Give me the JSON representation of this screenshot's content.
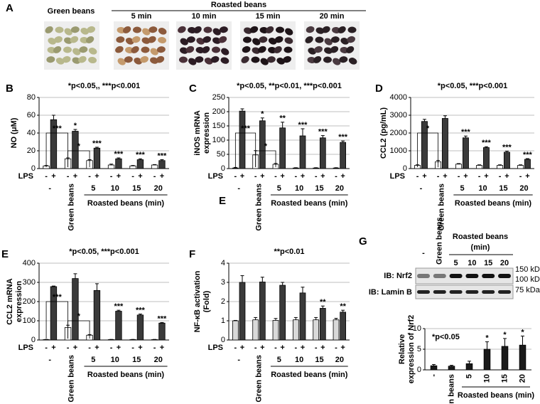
{
  "panel_a": {
    "panel": "A",
    "green_label": "Green beans",
    "roasted_label": "Roasted beans",
    "times": [
      "5 min",
      "10 min",
      "15 min",
      "20 min"
    ]
  },
  "panel_g_blot": {
    "panel": "G",
    "lanes": [
      "-",
      "Green beans",
      "5",
      "10",
      "15",
      "20"
    ],
    "group_label": "Roasted beans",
    "group_unit": "(min)",
    "rows": [
      "IB: Nrf2",
      "IB: Lamin B"
    ],
    "markers": [
      "150 kDa",
      "100 kDa",
      "75 kDa"
    ]
  },
  "chart_data": [
    {
      "type": "bar",
      "panel": "B",
      "title": "*p<0.05,, ***p<0.001",
      "y_label": [
        "NO (μM)"
      ],
      "ylim": [
        0,
        80
      ],
      "yticks": [
        0,
        20,
        40,
        60,
        80
      ],
      "grid": true,
      "x_label": "LPS",
      "lps_signs": [
        "-",
        "+"
      ],
      "categories": [
        "-",
        "Green beans",
        "5",
        "10",
        "15",
        "20"
      ],
      "group_label": "Roasted beans (min)",
      "brackets": [
        "***",
        "*"
      ],
      "series": [
        {
          "color": "#ffffff",
          "values": [
            3,
            11,
            9,
            4,
            3,
            4
          ],
          "errors": [
            0.5,
            1,
            1,
            1,
            0.5,
            0.5
          ]
        },
        {
          "color": "#3a3a3a",
          "values": [
            55,
            42,
            23,
            11,
            10,
            9
          ],
          "errors": [
            5,
            2,
            1,
            1,
            1,
            1
          ],
          "stars": [
            null,
            "*",
            "***",
            "***",
            "***",
            "***"
          ]
        }
      ]
    },
    {
      "type": "bar",
      "panel": "C",
      "title": "*p<0.05, **p<0.01, ***p<0.001",
      "y_label": [
        "iNOS mRNA",
        "expression"
      ],
      "ylim": [
        0,
        250
      ],
      "yticks": [
        0,
        50,
        100,
        150,
        200,
        250
      ],
      "grid": true,
      "x_label": "LPS",
      "lps_signs": [
        "-",
        "+"
      ],
      "categories": [
        "-",
        "Green beans",
        "5",
        "10",
        "15",
        "20"
      ],
      "group_label": "Roasted beans (min)",
      "brackets": [
        "***",
        "*"
      ],
      "extra_label": "E",
      "series": [
        {
          "color": "#ffffff",
          "values": [
            2,
            48,
            15,
            2,
            2,
            2
          ],
          "errors": [
            2,
            15,
            3,
            1,
            1,
            1
          ]
        },
        {
          "color": "#3a3a3a",
          "values": [
            202,
            168,
            143,
            115,
            108,
            92
          ],
          "errors": [
            8,
            10,
            20,
            25,
            8,
            5
          ],
          "stars": [
            null,
            "*",
            "**",
            "***",
            "***",
            "***"
          ]
        }
      ]
    },
    {
      "type": "bar",
      "panel": "D",
      "title": "*p<0.05, ***p<0.001",
      "y_label": [
        "CCL2 (pg/mL)"
      ],
      "ylim": [
        0,
        4000
      ],
      "yticks": [
        0,
        1000,
        2000,
        3000,
        4000
      ],
      "grid": true,
      "x_label": "LPS",
      "lps_signs": [
        "-",
        "+"
      ],
      "categories": [
        "-",
        "Green beans",
        "5",
        "10",
        "15",
        "20"
      ],
      "group_label": "Roasted beans (min)",
      "brackets": [
        "*"
      ],
      "series": [
        {
          "color": "#ffffff",
          "values": [
            180,
            380,
            250,
            180,
            180,
            180
          ],
          "errors": [
            30,
            80,
            30,
            30,
            30,
            30
          ]
        },
        {
          "color": "#3a3a3a",
          "values": [
            2650,
            2820,
            1730,
            1180,
            920,
            520
          ],
          "errors": [
            120,
            150,
            100,
            50,
            60,
            40
          ],
          "stars": [
            null,
            null,
            "***",
            "***",
            "***",
            "***"
          ]
        }
      ]
    },
    {
      "type": "bar",
      "panel": "E",
      "title": "*p<0.05, ***p<0.001",
      "y_label": [
        "CCL2 mRNA",
        "expression"
      ],
      "ylim": [
        0,
        400
      ],
      "yticks": [
        0,
        100,
        200,
        300,
        400
      ],
      "grid": true,
      "x_label": "LPS",
      "lps_signs": [
        "-",
        "+"
      ],
      "categories": [
        "-",
        "Green beans",
        "5",
        "10",
        "15",
        "20"
      ],
      "group_label": "Roasted beans (min)",
      "brackets": [
        "***",
        "*"
      ],
      "series": [
        {
          "color": "#ffffff",
          "values": [
            2,
            65,
            25,
            2,
            2,
            2
          ],
          "errors": [
            1,
            12,
            3,
            1,
            1,
            1
          ]
        },
        {
          "color": "#3a3a3a",
          "values": [
            278,
            320,
            258,
            150,
            130,
            88
          ],
          "errors": [
            3,
            25,
            35,
            5,
            5,
            3
          ],
          "stars": [
            null,
            null,
            null,
            "***",
            "***",
            "***"
          ]
        }
      ]
    },
    {
      "type": "bar",
      "panel": "F",
      "title": "**p<0.01",
      "y_label": [
        "NF-κB activation",
        "(Fold)"
      ],
      "ylim": [
        0,
        4
      ],
      "yticks": [
        0,
        1,
        2,
        3,
        4
      ],
      "grid": true,
      "x_label": "LPS",
      "lps_signs": [
        "-",
        "+"
      ],
      "categories": [
        "-",
        "Green beans",
        "5",
        "10",
        "15",
        "20"
      ],
      "group_label": "Roasted beans (min)",
      "series": [
        {
          "color": "#d9d9d9",
          "values": [
            1.0,
            1.05,
            1.02,
            1.05,
            1.05,
            1.05
          ],
          "errors": [
            0.02,
            0.12,
            0.1,
            0.12,
            0.12,
            0.08
          ]
        },
        {
          "color": "#3a3a3a",
          "values": [
            3.0,
            3.02,
            2.85,
            2.45,
            1.65,
            1.45
          ],
          "errors": [
            0.35,
            0.25,
            0.15,
            0.3,
            0.12,
            0.1
          ],
          "stars": [
            null,
            null,
            null,
            null,
            "**",
            "**"
          ]
        }
      ]
    },
    {
      "type": "bar",
      "title": "*p<0.05",
      "y_label": [
        "Relative",
        "expression of Nrf2"
      ],
      "ylim": [
        0,
        10
      ],
      "yticks": [
        0,
        5,
        10
      ],
      "grid": true,
      "categories": [
        "-",
        "Green beans",
        "5",
        "10",
        "15",
        "20"
      ],
      "group_label": "Roasted beans (min)",
      "series": [
        {
          "color": "#1a1a1a",
          "values": [
            1,
            0.9,
            1.5,
            5,
            5.7,
            6
          ],
          "errors": [
            0.3,
            0.2,
            0.6,
            1.8,
            1.9,
            2.2
          ],
          "stars": [
            null,
            null,
            null,
            "*",
            "*",
            "*"
          ]
        }
      ]
    }
  ]
}
